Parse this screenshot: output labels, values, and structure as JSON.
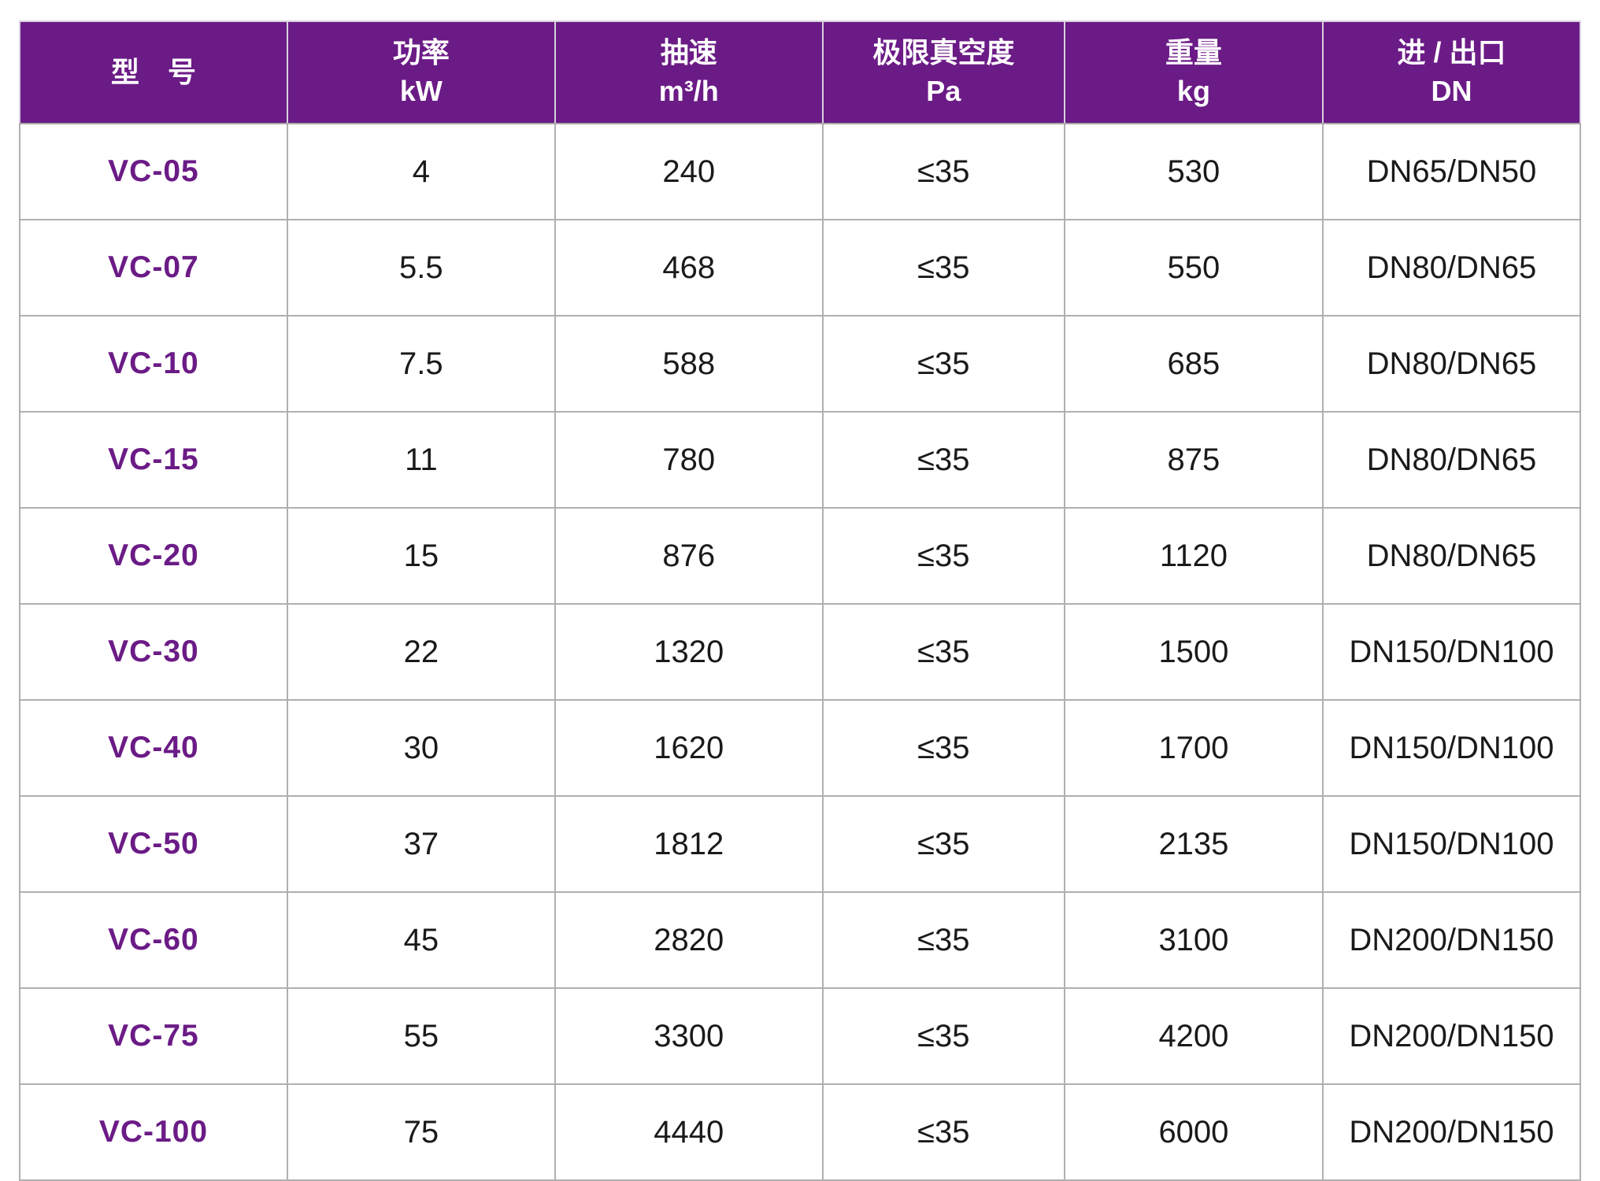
{
  "chart_data": {
    "type": "table",
    "title": "",
    "columns": [
      {
        "label": "型　号",
        "unit": ""
      },
      {
        "label": "功率",
        "unit": "kW"
      },
      {
        "label": "抽速",
        "unit": "m³/h"
      },
      {
        "label": "极限真空度",
        "unit": "Pa"
      },
      {
        "label": "重量",
        "unit": "kg"
      },
      {
        "label": "进 / 出口",
        "unit": "DN"
      }
    ],
    "rows": [
      [
        "VC-05",
        "4",
        "240",
        "≤35",
        "530",
        "DN65/DN50"
      ],
      [
        "VC-07",
        "5.5",
        "468",
        "≤35",
        "550",
        "DN80/DN65"
      ],
      [
        "VC-10",
        "7.5",
        "588",
        "≤35",
        "685",
        "DN80/DN65"
      ],
      [
        "VC-15",
        "11",
        "780",
        "≤35",
        "875",
        "DN80/DN65"
      ],
      [
        "VC-20",
        "15",
        "876",
        "≤35",
        "1120",
        "DN80/DN65"
      ],
      [
        "VC-30",
        "22",
        "1320",
        "≤35",
        "1500",
        "DN150/DN100"
      ],
      [
        "VC-40",
        "30",
        "1620",
        "≤35",
        "1700",
        "DN150/DN100"
      ],
      [
        "VC-50",
        "37",
        "1812",
        "≤35",
        "2135",
        "DN150/DN100"
      ],
      [
        "VC-60",
        "45",
        "2820",
        "≤35",
        "3100",
        "DN200/DN150"
      ],
      [
        "VC-75",
        "55",
        "3300",
        "≤35",
        "4200",
        "DN200/DN150"
      ],
      [
        "VC-100",
        "75",
        "4440",
        "≤35",
        "6000",
        "DN200/DN150"
      ]
    ],
    "layout": {
      "grid": true,
      "column_width_percents": [
        17.15,
        17.15,
        17.15,
        15.5,
        16.55,
        16.5
      ]
    }
  },
  "styles": {
    "header_bg": "#6B1B86",
    "header_text": "#ffffff",
    "model_color": "#6B1B86",
    "body_text": "#1a1a1a",
    "grid_border": "#b0b0b0"
  }
}
